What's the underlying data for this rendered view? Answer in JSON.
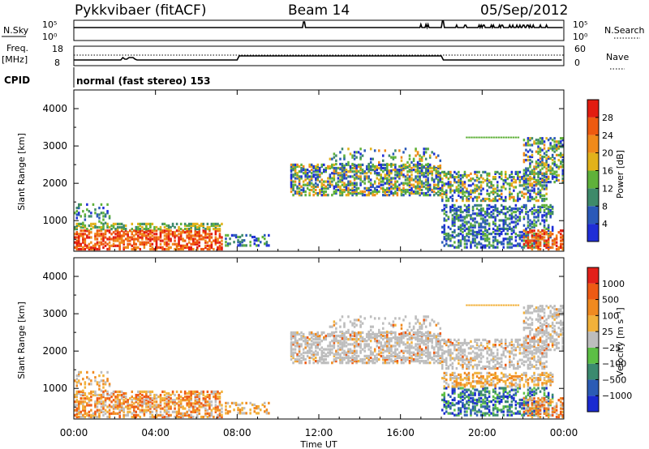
{
  "header": {
    "title": "Pykkvibaer (fitACF)",
    "beam": "Beam 14",
    "date": "05/Sep/2012"
  },
  "top_panels": {
    "nsky_label": "N.Sky",
    "nsky_top": "10^5",
    "nsky_bottom": "10^0",
    "nsearch_top": "10^5",
    "nsearch_bottom": "10^0",
    "nsearch_label": "N.Search",
    "freq_label_1": "Freq.",
    "freq_label_2": "[MHz]",
    "freq_top": "18",
    "freq_bottom": "8",
    "nave_top": "60",
    "nave_bottom": "0",
    "nave_label": "Nave",
    "cpid_label": "CPID",
    "cpid_text": "normal (fast stereo) 153"
  },
  "chart_data": [
    {
      "type": "heatmap",
      "name": "power",
      "ylabel": "Slant Range [km]",
      "yticks": [
        "1000",
        "2000",
        "3000",
        "4000"
      ],
      "ylim": [
        180,
        4500
      ],
      "colorbar_label": "Power [dB]",
      "colorbar_ticks": [
        "4",
        "8",
        "12",
        "16",
        "20",
        "24",
        "28"
      ],
      "colors": [
        "#1f2ed6",
        "#2a59b8",
        "#3e8a6a",
        "#5fb13a",
        "#e2b21a",
        "#f08a1a",
        "#ee5a10",
        "#e21c10"
      ]
    },
    {
      "type": "heatmap",
      "name": "velocity",
      "ylabel": "Slant Range [km]",
      "yticks": [
        "1000",
        "2000",
        "3000",
        "4000"
      ],
      "ylim": [
        180,
        4500
      ],
      "colorbar_label": "Velocity [m s⁻¹]",
      "colorbar_ticks": [
        "1000",
        "500",
        "100",
        "25",
        "−25",
        "−100",
        "−500",
        "−1000"
      ],
      "colors": [
        "#1a2ad0",
        "#2b5bb5",
        "#3b8a6f",
        "#5cbf45",
        "#bdbdbd",
        "#f2b13a",
        "#f08a20",
        "#ee5a14",
        "#e2201a"
      ]
    }
  ],
  "xaxis": {
    "ticks": [
      "00:00",
      "04:00",
      "08:00",
      "12:00",
      "16:00",
      "20:00",
      "00:00"
    ],
    "label": "Time UT"
  }
}
